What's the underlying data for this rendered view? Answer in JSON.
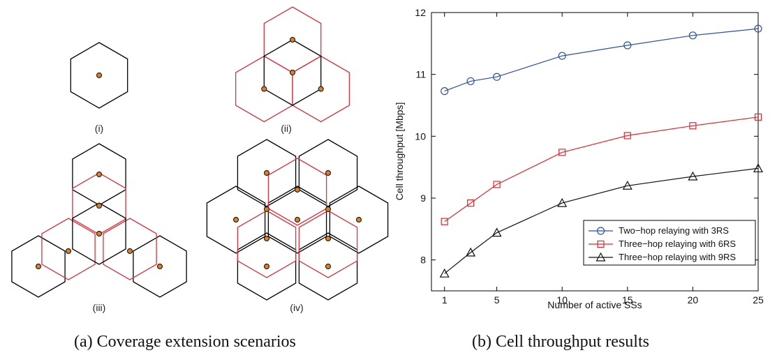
{
  "left_panel": {
    "scenario_labels": [
      "(i)",
      "(ii)",
      "(iii)",
      "(iv)"
    ],
    "colors": {
      "cell": "#000000",
      "relay_cell": "#e0303a",
      "node_fill": "#e67e22",
      "node_stroke": "#222222"
    }
  },
  "captions": {
    "left": "(a)  Coverage extension scenarios",
    "right": "(b)  Cell throughput results"
  },
  "chart_data": {
    "type": "line",
    "title": "",
    "xlabel": "Number of active SSs",
    "ylabel": "Cell throughput [Mbps]",
    "xlim": [
      0,
      25
    ],
    "ylim": [
      7.5,
      12
    ],
    "x_ticks": [
      1,
      5,
      10,
      15,
      20,
      25
    ],
    "y_ticks": [
      8,
      9,
      10,
      11,
      12
    ],
    "grid": false,
    "legend_position": "bottom-right",
    "series": [
      {
        "name": "Two−hop relaying with 3RS",
        "color": "#2b4fa8",
        "marker": "circle",
        "x": [
          1,
          3,
          5,
          10,
          15,
          20,
          25
        ],
        "y": [
          10.73,
          10.89,
          10.96,
          11.3,
          11.47,
          11.63,
          11.74
        ]
      },
      {
        "name": "Three−hop relaying with 6RS",
        "color": "#e3262d",
        "marker": "square",
        "x": [
          1,
          3,
          5,
          10,
          15,
          20,
          25
        ],
        "y": [
          8.62,
          8.92,
          9.22,
          9.74,
          10.01,
          10.17,
          10.31
        ]
      },
      {
        "name": "Three−hop relaying with 9RS",
        "color": "#111111",
        "marker": "triangle",
        "x": [
          1,
          3,
          5,
          10,
          15,
          20,
          25
        ],
        "y": [
          7.78,
          8.12,
          8.44,
          8.92,
          9.2,
          9.35,
          9.48
        ]
      }
    ]
  }
}
